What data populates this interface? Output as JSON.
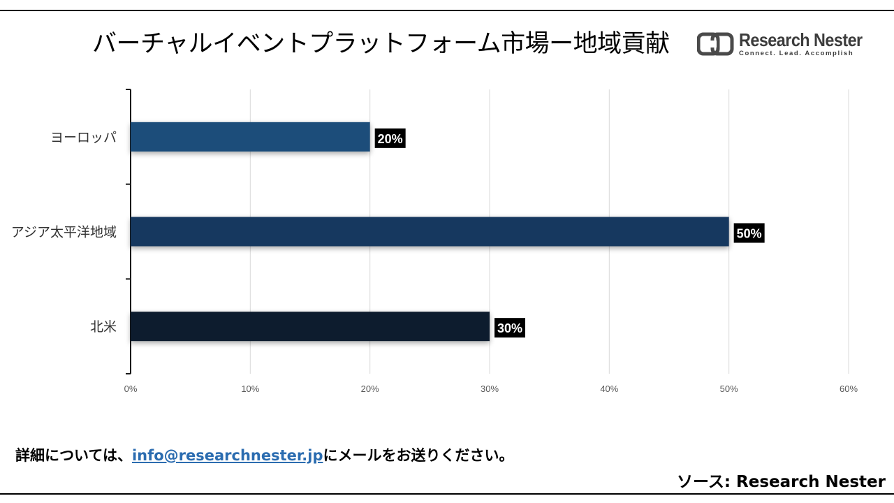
{
  "header": {
    "title": "バーチャルイベントプラットフォーム市場ー地域貢献",
    "logo_name": "Research Nester",
    "logo_tagline": "Connect. Lead. Accomplish"
  },
  "chart_data": {
    "type": "bar",
    "orientation": "horizontal",
    "categories": [
      "ヨーロッパ",
      "アジア太平洋地域",
      "北米"
    ],
    "values": [
      20,
      50,
      30
    ],
    "data_labels": [
      "20%",
      "50%",
      "30%"
    ],
    "bar_colors": [
      "#1f4e7a",
      "#17375e",
      "#0e1e2e"
    ],
    "xlim": [
      0,
      60
    ],
    "x_ticks": [
      "0%",
      "10%",
      "20%",
      "30%",
      "40%",
      "50%",
      "60%"
    ],
    "grid": true
  },
  "footer": {
    "contact_prefix": "詳細については、",
    "contact_email": "info@researchnester.jp",
    "contact_suffix": "にメールをお送りください。",
    "source": "ソース: Research Nester"
  }
}
